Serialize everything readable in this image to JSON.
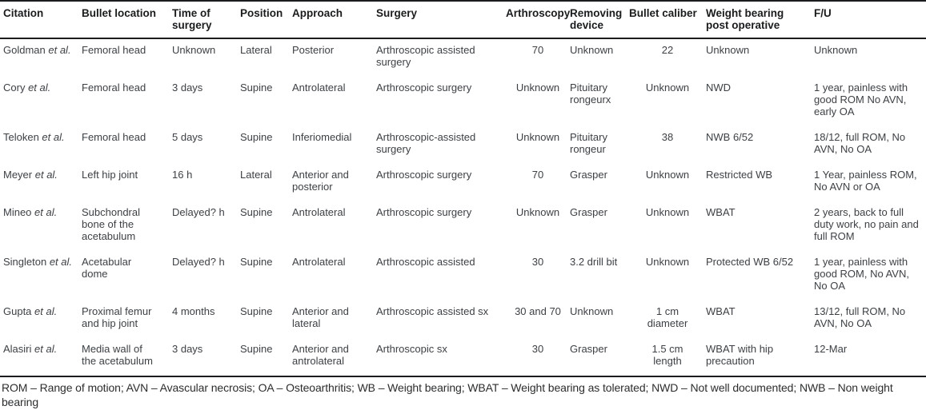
{
  "table": {
    "columns": [
      {
        "key": "citation",
        "label": "Citation"
      },
      {
        "key": "bullet_location",
        "label": "Bullet location"
      },
      {
        "key": "time_of_surgery",
        "label": "Time of surgery"
      },
      {
        "key": "position",
        "label": "Position"
      },
      {
        "key": "approach",
        "label": "Approach"
      },
      {
        "key": "surgery",
        "label": "Surgery"
      },
      {
        "key": "arthroscopy",
        "label": "Arthroscopy"
      },
      {
        "key": "removing_device",
        "label": "Removing device"
      },
      {
        "key": "bullet_caliber",
        "label": "Bullet caliber"
      },
      {
        "key": "weight_bearing",
        "label": "Weight bearing post operative"
      },
      {
        "key": "fu",
        "label": "F/U"
      }
    ],
    "rows": [
      {
        "citation": {
          "name": "Goldman",
          "etal": "et al."
        },
        "bullet_location": "Femoral head",
        "time_of_surgery": "Unknown",
        "position": "Lateral",
        "approach": "Posterior",
        "surgery": "Arthroscopic assisted surgery",
        "arthroscopy": "70",
        "removing_device": "Unknown",
        "bullet_caliber": "22",
        "weight_bearing": "Unknown",
        "fu": "Unknown"
      },
      {
        "citation": {
          "name": "Cory",
          "etal": "et al."
        },
        "bullet_location": "Femoral head",
        "time_of_surgery": "3 days",
        "position": "Supine",
        "approach": "Antrolateral",
        "surgery": "Arthroscopic surgery",
        "arthroscopy": "Unknown",
        "removing_device": "Pituitary rongeurx",
        "bullet_caliber": "Unknown",
        "weight_bearing": "NWD",
        "fu": "1 year, painless with good ROM No AVN, early OA"
      },
      {
        "citation": {
          "name": "Teloken",
          "etal": "et al."
        },
        "bullet_location": "Femoral head",
        "time_of_surgery": "5 days",
        "position": "Supine",
        "approach": "Inferiomedial",
        "surgery": "Arthroscopic-assisted surgery",
        "arthroscopy": "Unknown",
        "removing_device": "Pituitary rongeur",
        "bullet_caliber": "38",
        "weight_bearing": "NWB 6/52",
        "fu": "18/12, full ROM, No AVN, No OA"
      },
      {
        "citation": {
          "name": "Meyer",
          "etal": "et al."
        },
        "bullet_location": "Left hip joint",
        "time_of_surgery": "16 h",
        "position": "Lateral",
        "approach": "Anterior and posterior",
        "surgery": "Arthroscopic surgery",
        "arthroscopy": "70",
        "removing_device": "Grasper",
        "bullet_caliber": "Unknown",
        "weight_bearing": "Restricted WB",
        "fu": "1 Year, painless ROM, No AVN or OA"
      },
      {
        "citation": {
          "name": "Mineo",
          "etal": "et al."
        },
        "bullet_location": "Subchondral bone of the acetabulum",
        "time_of_surgery": "Delayed? h",
        "position": "Supine",
        "approach": "Antrolateral",
        "surgery": "Arthroscopic surgery",
        "arthroscopy": "Unknown",
        "removing_device": "Grasper",
        "bullet_caliber": "Unknown",
        "weight_bearing": "WBAT",
        "fu": "2 years, back to full duty work, no pain and full ROM"
      },
      {
        "citation": {
          "name": "Singleton",
          "etal": "et al."
        },
        "bullet_location": "Acetabular dome",
        "time_of_surgery": "Delayed? h",
        "position": "Supine",
        "approach": "Antrolateral",
        "surgery": "Arthroscopic assisted",
        "arthroscopy": "30",
        "removing_device": "3.2 drill bit",
        "bullet_caliber": "Unknown",
        "weight_bearing": "Protected WB 6/52",
        "fu": "1 year, painless with good ROM, No AVN, No OA"
      },
      {
        "citation": {
          "name": "Gupta",
          "etal": "et al."
        },
        "bullet_location": "Proximal femur and hip joint",
        "time_of_surgery": "4 months",
        "position": "Supine",
        "approach": "Anterior and lateral",
        "surgery": "Arthroscopic assisted sx",
        "arthroscopy": "30 and 70",
        "removing_device": "Unknown",
        "bullet_caliber": "1 cm diameter",
        "weight_bearing": "WBAT",
        "fu": "13/12, full ROM, No AVN, No OA"
      },
      {
        "citation": {
          "name": "Alasiri",
          "etal": "et al."
        },
        "bullet_location": "Media wall of the acetabulum",
        "time_of_surgery": "3 days",
        "position": "Supine",
        "approach": "Anterior and antrolateral",
        "surgery": "Arthroscopic sx",
        "arthroscopy": "30",
        "removing_device": "Grasper",
        "bullet_caliber": "1.5 cm length",
        "weight_bearing": "WBAT with hip precaution",
        "fu": "12-Mar"
      }
    ]
  },
  "footnote": "ROM – Range of motion; AVN – Avascular necrosis; OA – Osteoarthritis; WB – Weight bearing; WBAT – Weight bearing as tolerated; NWD – Not well documented; NWB – Non weight bearing"
}
